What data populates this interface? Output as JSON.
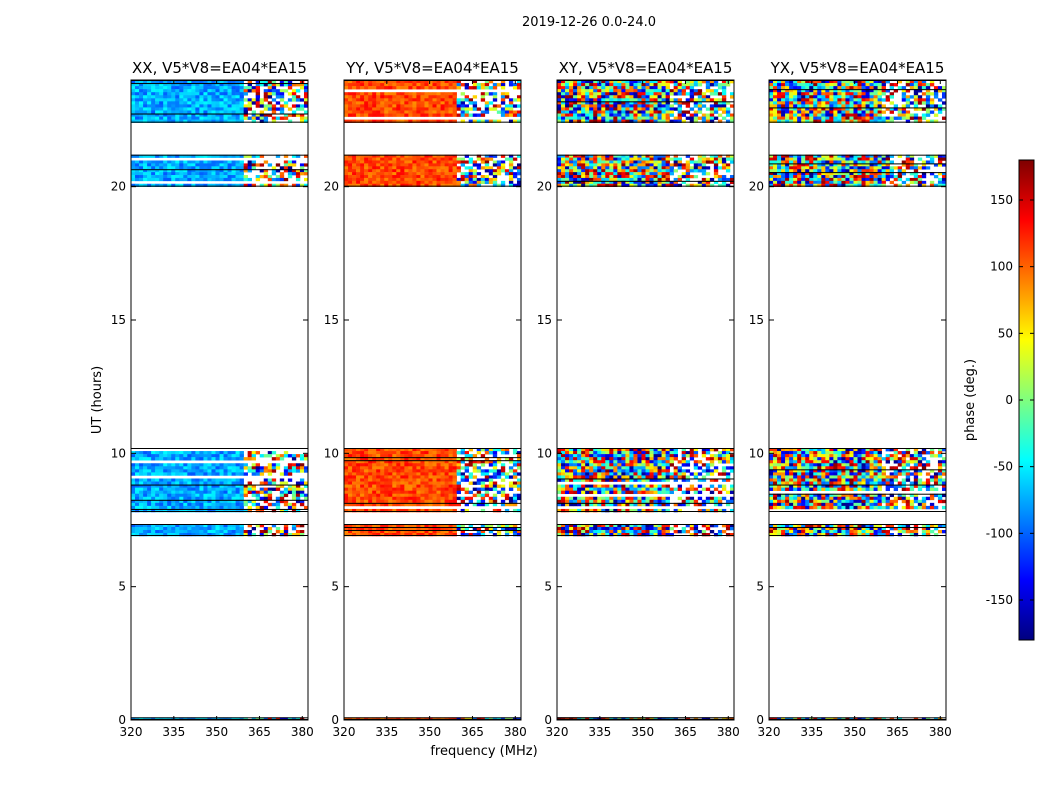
{
  "chart_data": {
    "type": "heatmap",
    "title": "2019-12-26 0.0-24.0",
    "xlabel": "frequency (MHz)",
    "ylabel": "UT (hours)",
    "xlim": [
      320,
      382
    ],
    "ylim": [
      0,
      24
    ],
    "xticks": [
      320,
      335,
      350,
      365,
      380
    ],
    "yticks": [
      0,
      5,
      10,
      15,
      20
    ],
    "colorbar": {
      "label": "phase (deg.)",
      "range": [
        -180,
        180
      ],
      "ticks": [
        150,
        100,
        50,
        0,
        -50,
        -100,
        -150
      ],
      "colormap": "jet",
      "colors": [
        "#00007f",
        "#0000ff",
        "#007fff",
        "#00ffff",
        "#7fff7f",
        "#ffff00",
        "#ff7f00",
        "#ff0000",
        "#7f0000"
      ]
    },
    "observation_blocks_ut": [
      {
        "start": 0.0,
        "end": 0.1
      },
      {
        "start": 6.9,
        "end": 7.35
      },
      {
        "start": 7.8,
        "end": 10.2
      },
      {
        "start": 20.0,
        "end": 21.2
      },
      {
        "start": 22.4,
        "end": 24.0
      }
    ],
    "transition_frequency_mhz": 360,
    "panels": [
      {
        "title": "XX, V5*V8=EA04*EA15",
        "dominant_phase_deg": -75,
        "scatter_deg": 30
      },
      {
        "title": "YY, V5*V8=EA04*EA15",
        "dominant_phase_deg": 110,
        "scatter_deg": 25
      },
      {
        "title": "XY, V5*V8=EA04*EA15",
        "dominant_phase_deg": 0,
        "scatter_deg": 180
      },
      {
        "title": "YX, V5*V8=EA04*EA15",
        "dominant_phase_deg": 0,
        "scatter_deg": 180
      }
    ]
  }
}
